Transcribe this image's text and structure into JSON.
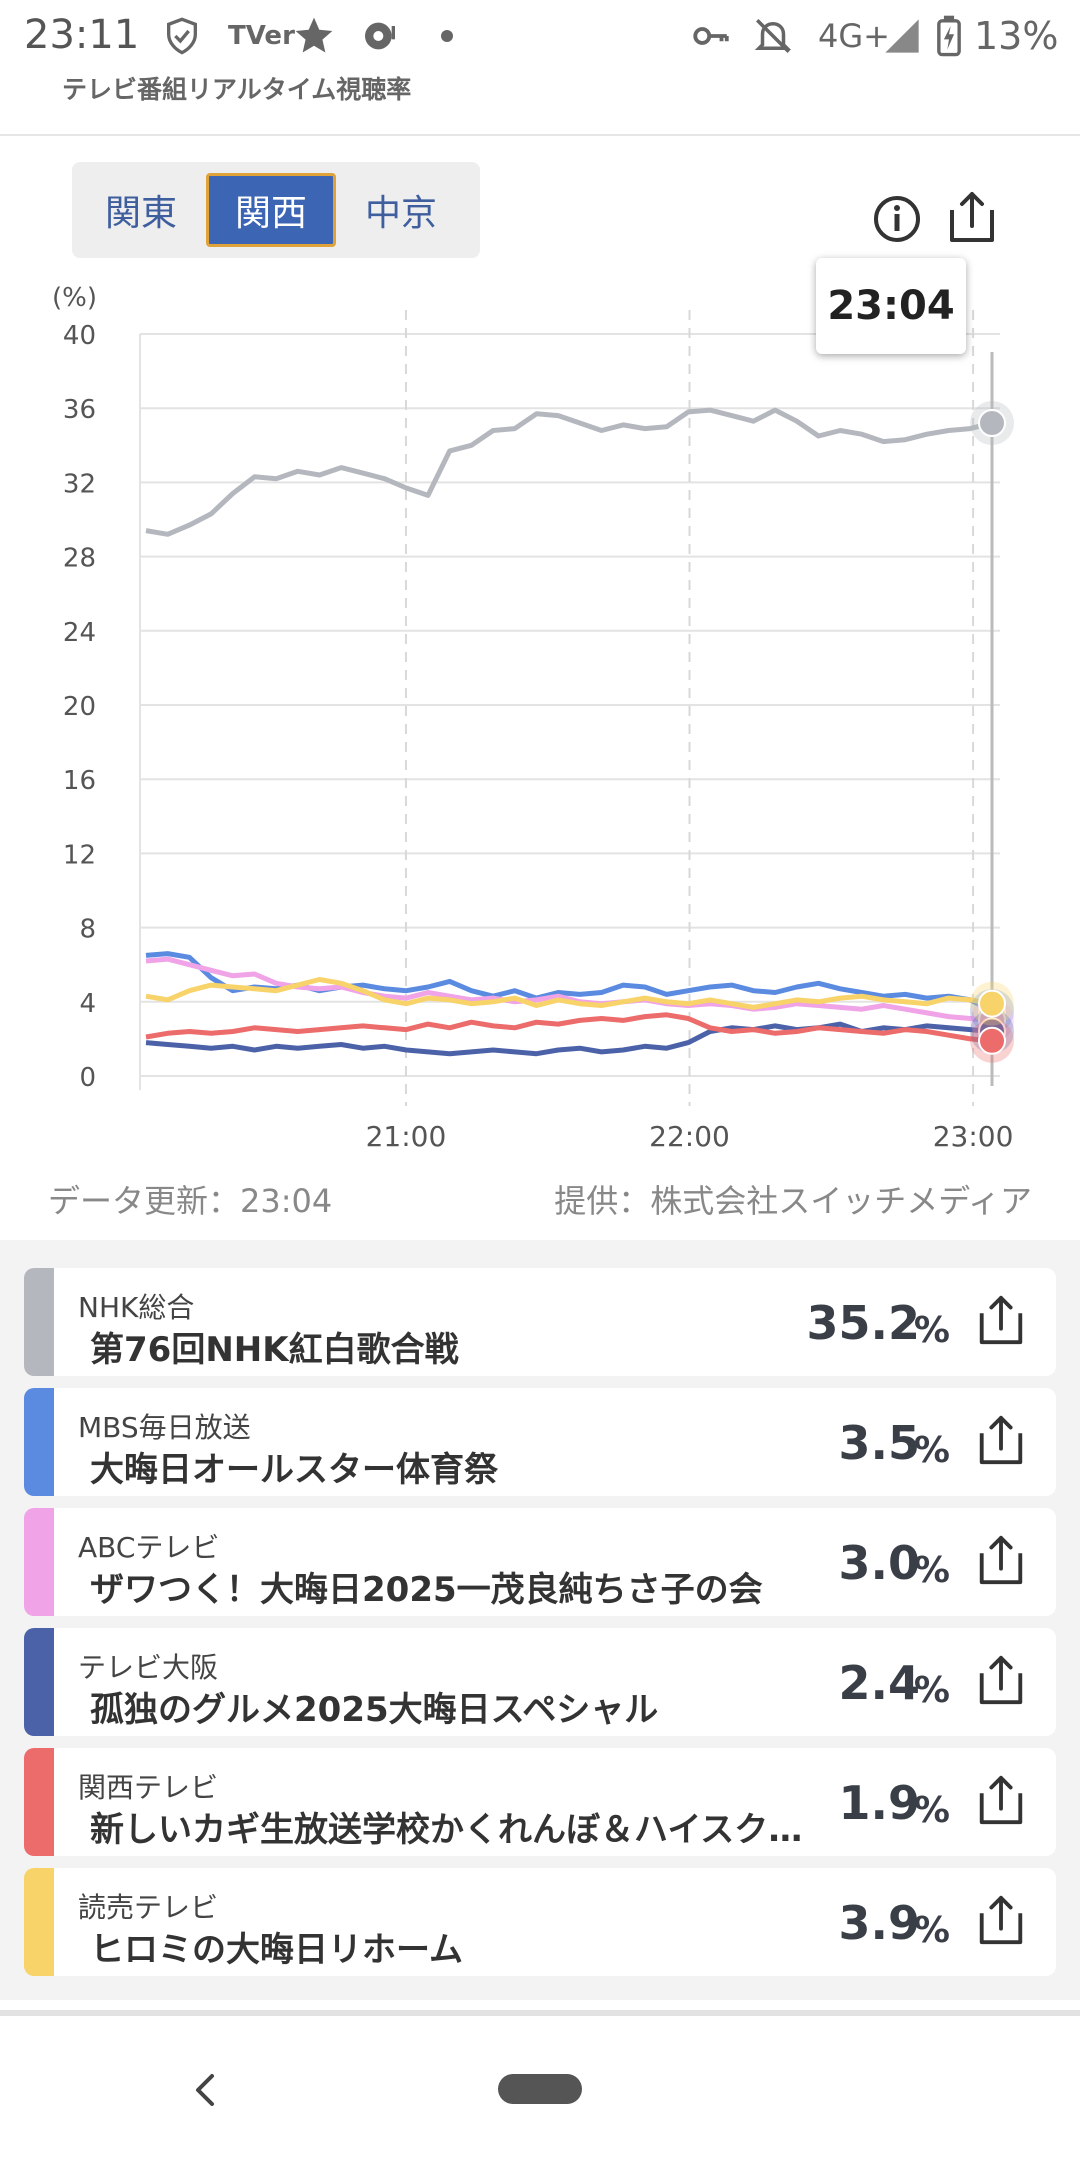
{
  "status_bar": {
    "time": "23:11",
    "network": "4G+",
    "battery": "13%",
    "tver": "TVer",
    "icons": [
      "shield-check-icon",
      "tver-icon",
      "star-icon",
      "record-icon",
      "dot-icon",
      "key-icon",
      "bell-off-icon",
      "signal-icon",
      "battery-charging-icon"
    ]
  },
  "app": {
    "title": "テレビ番組リアルタイム視聴率"
  },
  "regions": {
    "items": [
      {
        "label": "関東"
      },
      {
        "label": "関西"
      },
      {
        "label": "中京"
      }
    ],
    "selected": "関西"
  },
  "tooltip_time": "23:04",
  "footer": {
    "updated": "データ更新：23:04",
    "provider": "提供：株式会社スイッチメディア"
  },
  "chart_data": {
    "type": "line",
    "ylabel": "(%)",
    "ylim": [
      0,
      40
    ],
    "y_ticks": [
      "40",
      "36",
      "32",
      "28",
      "24",
      "20",
      "16",
      "12",
      "8",
      "4",
      "0"
    ],
    "x_ticks": [
      "21:00",
      "22:00",
      "23:00"
    ],
    "x_range": [
      "20:05",
      "23:04"
    ],
    "grid": true,
    "series": [
      {
        "name": "NHK総合",
        "color": "#b4b8be",
        "values": [
          29.4,
          29.2,
          29.7,
          30.3,
          31.4,
          32.3,
          32.2,
          32.6,
          32.4,
          32.8,
          32.5,
          32.2,
          31.7,
          31.3,
          33.7,
          34.0,
          34.8,
          34.9,
          35.7,
          35.6,
          35.2,
          34.8,
          35.1,
          34.9,
          35.0,
          35.8,
          35.9,
          35.6,
          35.3,
          35.9,
          35.3,
          34.5,
          34.8,
          34.6,
          34.2,
          34.3,
          34.6,
          34.8,
          34.9,
          35.2
        ]
      },
      {
        "name": "MBS毎日放送",
        "color": "#5b8be0",
        "values": [
          6.5,
          6.6,
          6.4,
          5.3,
          4.6,
          4.8,
          4.7,
          4.9,
          4.6,
          4.8,
          4.9,
          4.7,
          4.6,
          4.8,
          5.1,
          4.6,
          4.3,
          4.6,
          4.2,
          4.5,
          4.4,
          4.5,
          4.9,
          4.8,
          4.4,
          4.6,
          4.8,
          4.9,
          4.6,
          4.5,
          4.8,
          5.0,
          4.7,
          4.5,
          4.3,
          4.4,
          4.2,
          4.3,
          4.1,
          3.5
        ]
      },
      {
        "name": "ABCテレビ",
        "color": "#f0a3e6",
        "values": [
          6.2,
          6.3,
          6.0,
          5.7,
          5.4,
          5.5,
          5.0,
          4.8,
          4.7,
          4.8,
          4.5,
          4.3,
          4.2,
          4.5,
          4.3,
          4.1,
          4.2,
          4.0,
          4.1,
          4.3,
          4.0,
          3.9,
          4.0,
          4.1,
          3.9,
          3.8,
          3.9,
          3.8,
          3.6,
          3.7,
          3.9,
          3.8,
          3.7,
          3.6,
          3.8,
          3.6,
          3.4,
          3.2,
          3.1,
          3.0
        ]
      },
      {
        "name": "テレビ大阪",
        "color": "#4c62a8",
        "values": [
          1.8,
          1.7,
          1.6,
          1.5,
          1.6,
          1.4,
          1.6,
          1.5,
          1.6,
          1.7,
          1.5,
          1.6,
          1.4,
          1.3,
          1.2,
          1.3,
          1.4,
          1.3,
          1.2,
          1.4,
          1.5,
          1.3,
          1.4,
          1.6,
          1.5,
          1.8,
          2.4,
          2.6,
          2.5,
          2.7,
          2.5,
          2.6,
          2.8,
          2.4,
          2.6,
          2.5,
          2.7,
          2.6,
          2.5,
          2.4
        ]
      },
      {
        "name": "関西テレビ",
        "color": "#ec6b6b",
        "values": [
          2.1,
          2.3,
          2.4,
          2.3,
          2.4,
          2.6,
          2.5,
          2.4,
          2.5,
          2.6,
          2.7,
          2.6,
          2.5,
          2.8,
          2.6,
          2.9,
          2.7,
          2.6,
          2.9,
          2.8,
          3.0,
          3.1,
          3.0,
          3.2,
          3.3,
          3.1,
          2.6,
          2.4,
          2.5,
          2.3,
          2.4,
          2.6,
          2.5,
          2.4,
          2.3,
          2.5,
          2.4,
          2.2,
          2.0,
          1.9
        ]
      },
      {
        "name": "読売テレビ",
        "color": "#f7d36a",
        "values": [
          4.3,
          4.1,
          4.6,
          4.9,
          4.8,
          4.7,
          4.6,
          4.9,
          5.2,
          5.0,
          4.6,
          4.1,
          3.9,
          4.2,
          4.1,
          3.9,
          4.0,
          4.2,
          3.8,
          4.1,
          3.9,
          3.8,
          4.0,
          4.2,
          4.0,
          3.9,
          4.1,
          3.9,
          3.7,
          3.9,
          4.1,
          4.0,
          4.2,
          4.3,
          4.1,
          4.0,
          3.9,
          4.2,
          4.1,
          3.9
        ]
      }
    ]
  },
  "programs": [
    {
      "channel": "NHK総合",
      "title": "第76回NHK紅白歌合戦",
      "rating": "35.2",
      "unit": "%",
      "color": "#b4b8be"
    },
    {
      "channel": "MBS毎日放送",
      "title": "大晦日オールスター体育祭",
      "rating": "3.5",
      "unit": "%",
      "color": "#5b8be0"
    },
    {
      "channel": "ABCテレビ",
      "title": "ザワつく！大晦日2025一茂良純ちさ子の会",
      "rating": "3.0",
      "unit": "%",
      "color": "#f0a3e6"
    },
    {
      "channel": "テレビ大阪",
      "title": "孤独のグルメ2025大晦日スペシャル",
      "rating": "2.4",
      "unit": "%",
      "color": "#4c62a8"
    },
    {
      "channel": "関西テレビ",
      "title": "新しいカギ生放送学校かくれんぼ＆ハイスクール",
      "rating": "1.9",
      "unit": "%",
      "color": "#ec6b6b"
    },
    {
      "channel": "読売テレビ",
      "title": "ヒロミの大晦日リホーム",
      "rating": "3.9",
      "unit": "%",
      "color": "#f7d36a"
    }
  ]
}
